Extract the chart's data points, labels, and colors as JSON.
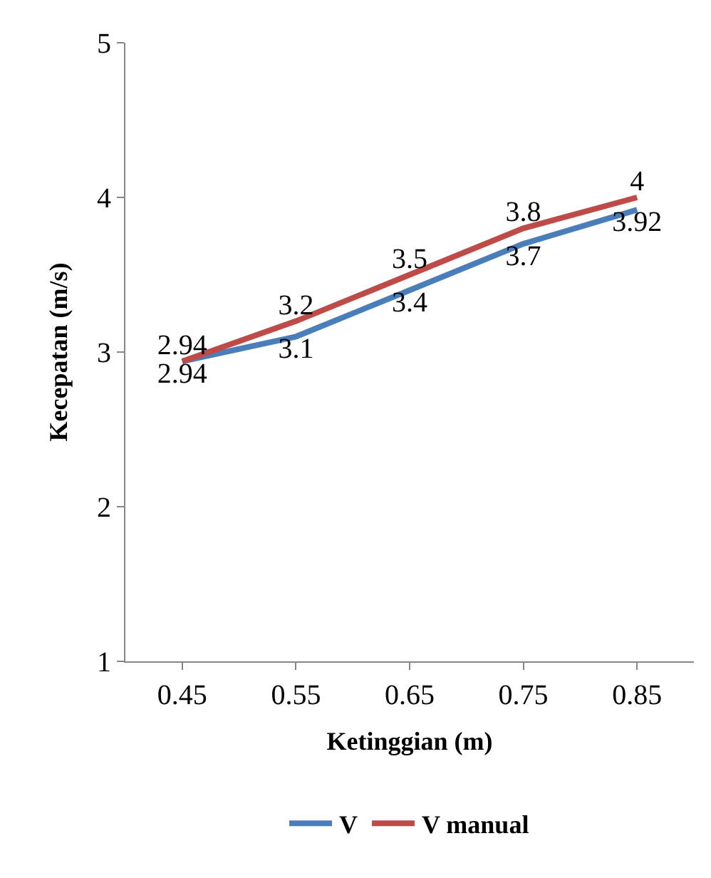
{
  "chart_data": {
    "type": "line",
    "xlabel": "Ketinggian (m)",
    "ylabel": "Kecepatan (m/s)",
    "categories": [
      "0.45",
      "0.55",
      "0.65",
      "0.75",
      "0.85"
    ],
    "series": [
      {
        "name": "V",
        "color": "#4a7ebb",
        "values": [
          2.94,
          3.1,
          3.4,
          3.7,
          3.92
        ]
      },
      {
        "name": "V manual",
        "color": "#be4b48",
        "values": [
          2.94,
          3.2,
          3.5,
          3.8,
          4
        ]
      }
    ],
    "ylim": [
      1,
      5
    ],
    "yticks": [
      1,
      2,
      3,
      4,
      5
    ],
    "legend": "bottom",
    "marker": "none",
    "line_style": "solid",
    "data_labels": true
  }
}
